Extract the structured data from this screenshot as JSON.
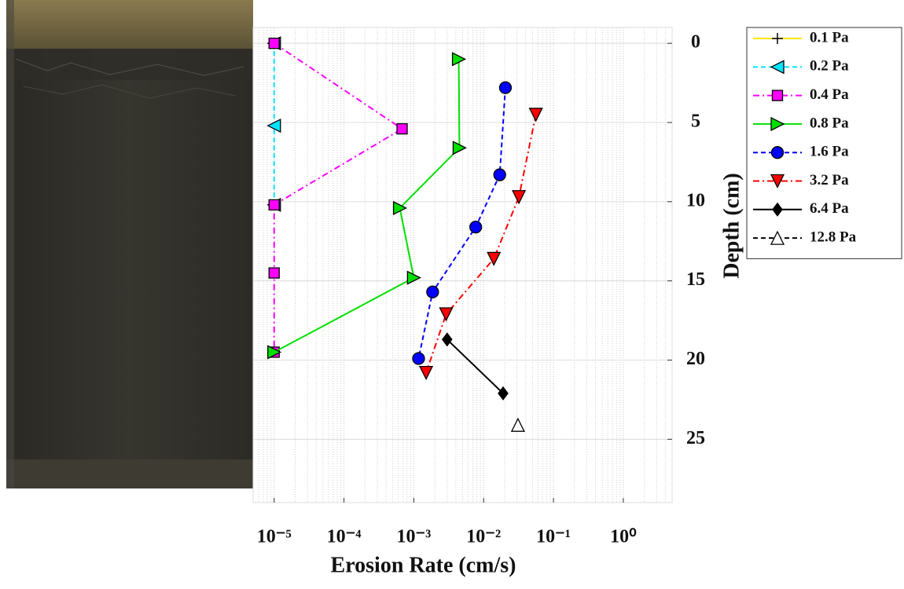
{
  "chart_data": {
    "type": "line",
    "x_label": "Erosion Rate (cm/s)",
    "y_label": "Depth (cm)",
    "x_log": true,
    "y_reversed": true,
    "y_axis_side": "right",
    "grid": true,
    "legend": "right",
    "xlim": [
      5e-06,
      5
    ],
    "ylim": [
      -1,
      29
    ],
    "xticks": [
      {
        "value": 1e-05,
        "label": "10⁻⁵"
      },
      {
        "value": 0.0001,
        "label": "10⁻⁴"
      },
      {
        "value": 0.001,
        "label": "10⁻³"
      },
      {
        "value": 0.01,
        "label": "10⁻²"
      },
      {
        "value": 0.1,
        "label": "10⁻¹"
      },
      {
        "value": 1,
        "label": "10⁰"
      }
    ],
    "yticks": [
      0,
      5,
      10,
      15,
      20,
      25
    ],
    "series": [
      {
        "name": "0.1 Pa",
        "color": "#ffe600",
        "marker": "plus",
        "marker_fill": "#000000",
        "line": "solid",
        "x": [],
        "y": []
      },
      {
        "name": "0.2 Pa",
        "color": "#00e5ff",
        "marker": "triangle-left",
        "marker_fill": "#00e5ff",
        "line": "dashed",
        "x": [
          1e-05,
          1e-05,
          1e-05
        ],
        "y": [
          0,
          5.2,
          10.2
        ]
      },
      {
        "name": "0.4 Pa",
        "color": "#ff00ff",
        "marker": "square",
        "marker_fill": "#ff00ff",
        "line": "dashdot",
        "x": [
          1e-05,
          0.00068,
          1e-05,
          1e-05,
          1e-05
        ],
        "y": [
          0,
          5.4,
          10.2,
          14.5,
          19.5
        ]
      },
      {
        "name": "0.8 Pa",
        "color": "#00e000",
        "marker": "triangle-right",
        "marker_fill": "#00e000",
        "line": "solid",
        "x": [
          0.0044,
          0.0045,
          0.00063,
          0.001,
          1e-05
        ],
        "y": [
          1.0,
          6.6,
          10.4,
          14.8,
          19.5
        ]
      },
      {
        "name": "1.6 Pa",
        "color": "#0000ff",
        "marker": "circle",
        "marker_fill": "#0000ff",
        "line": "dashed",
        "x": [
          0.0205,
          0.017,
          0.0077,
          0.00186,
          0.00117
        ],
        "y": [
          2.8,
          8.3,
          11.6,
          15.7,
          19.9
        ]
      },
      {
        "name": "3.2 Pa",
        "color": "#ff0000",
        "marker": "triangle-down",
        "marker_fill": "#ff0000",
        "line": "dashdot",
        "x": [
          0.056,
          0.032,
          0.014,
          0.0029,
          0.0015
        ],
        "y": [
          4.5,
          9.7,
          13.6,
          17.1,
          20.8
        ]
      },
      {
        "name": "6.4 Pa",
        "color": "#000000",
        "marker": "diamond",
        "marker_fill": "#000000",
        "line": "solid",
        "x": [
          0.003,
          0.019
        ],
        "y": [
          18.7,
          22.1
        ]
      },
      {
        "name": "12.8 Pa",
        "color": "#000000",
        "marker": "triangle-up",
        "marker_fill": "#ffffff",
        "line": "dashed",
        "x": [
          0.031
        ],
        "y": [
          24.1
        ]
      }
    ]
  }
}
